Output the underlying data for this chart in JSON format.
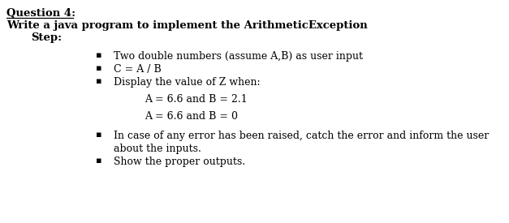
{
  "bg_color": "#ffffff",
  "title_line1": "Question 4:",
  "title_line2": "Write a java program to implement the ArithmeticException",
  "title_line3": "Step:",
  "bullet1": "Two double numbers (assume A,B) as user input",
  "bullet2": "C = A / B",
  "bullet3": "Display the value of Z when:",
  "sub1": "A = 6.6 and B = 2.1",
  "sub2": "A = 6.6 and B = 0",
  "bullet4_line1": "In case of any error has been raised, catch the error and inform the user",
  "bullet4_line2": "about the inputs.",
  "bullet5": "Show the proper outputs.",
  "font_color": "#000000",
  "font_family": "DejaVu Serif",
  "font_size_title": 9.5,
  "font_size_body": 9.0,
  "bullet_char": "▪"
}
